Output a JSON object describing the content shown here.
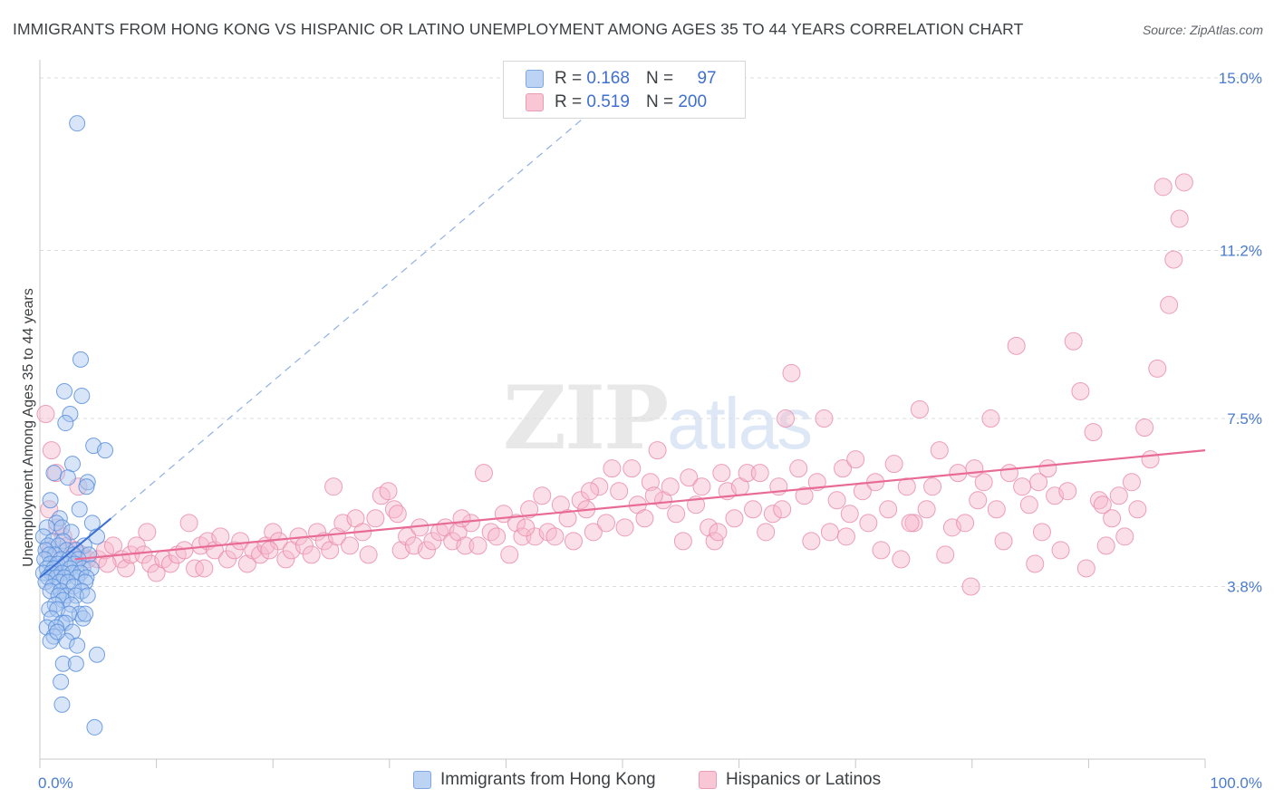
{
  "title": "IMMIGRANTS FROM HONG KONG VS HISPANIC OR LATINO UNEMPLOYMENT AMONG AGES 35 TO 44 YEARS CORRELATION CHART",
  "source": "Source: ZipAtlas.com",
  "watermark": {
    "zip": "ZIP",
    "atlas": "atlas"
  },
  "colors": {
    "blue_fill": "#a9c6ef",
    "blue_stroke": "#5b8fdc",
    "blue_line": "#3a6fd4",
    "pink_fill": "#f7b8cc",
    "pink_stroke": "#e88aa8",
    "pink_line": "#e86b96",
    "tick_label": "#4a7bd0",
    "grid": "#dadce0"
  },
  "legend_top": {
    "rows": [
      {
        "r_label": "R =",
        "r_value": "0.168",
        "n_label": "N =",
        "n_value": "97"
      },
      {
        "r_label": "R =",
        "r_value": "0.519",
        "n_label": "N =",
        "n_value": "200"
      }
    ]
  },
  "legend_bottom": {
    "items": [
      {
        "label": "Immigrants from Hong Kong"
      },
      {
        "label": "Hispanics or Latinos"
      }
    ]
  },
  "chart_data": {
    "type": "scatter",
    "title": "IMMIGRANTS FROM HONG KONG VS HISPANIC OR LATINO UNEMPLOYMENT AMONG AGES 35 TO 44 YEARS CORRELATION CHART",
    "xlabel": "",
    "ylabel": "Unemployment Among Ages 35 to 44 years",
    "x_range": [
      0,
      100
    ],
    "y_range": [
      0,
      15.4
    ],
    "x_tick_labels": [
      "0.0%",
      "100.0%"
    ],
    "y_ticks": [
      {
        "value": 3.8,
        "label": "3.8%"
      },
      {
        "value": 7.5,
        "label": "7.5%"
      },
      {
        "value": 11.2,
        "label": "11.2%"
      },
      {
        "value": 15.0,
        "label": "15.0%"
      }
    ],
    "grid": true,
    "legend_placement": "top-center",
    "series": [
      {
        "name": "Immigrants from Hong Kong",
        "color": "#a9c6ef",
        "R": 0.168,
        "N": 97,
        "trend": {
          "x": [
            0,
            6.1
          ],
          "y": [
            4.0,
            5.3
          ]
        },
        "trend_extension": {
          "x": [
            6.1,
            47.5
          ],
          "y": [
            5.3,
            14.3
          ]
        },
        "points": [
          [
            3.2,
            14.0
          ],
          [
            3.5,
            8.8
          ],
          [
            2.1,
            8.1
          ],
          [
            3.6,
            8.0
          ],
          [
            2.6,
            7.6
          ],
          [
            2.2,
            7.4
          ],
          [
            4.6,
            6.9
          ],
          [
            5.6,
            6.8
          ],
          [
            2.8,
            6.5
          ],
          [
            1.2,
            6.3
          ],
          [
            2.4,
            6.2
          ],
          [
            4.1,
            6.1
          ],
          [
            4.0,
            6.0
          ],
          [
            0.9,
            5.7
          ],
          [
            3.4,
            5.5
          ],
          [
            1.7,
            5.3
          ],
          [
            1.4,
            5.2
          ],
          [
            0.6,
            5.1
          ],
          [
            1.9,
            5.1
          ],
          [
            2.7,
            5.0
          ],
          [
            4.5,
            5.2
          ],
          [
            0.3,
            4.9
          ],
          [
            4.9,
            4.9
          ],
          [
            1.1,
            4.8
          ],
          [
            2.0,
            4.8
          ],
          [
            0.7,
            4.7
          ],
          [
            3.8,
            4.7
          ],
          [
            1.6,
            4.7
          ],
          [
            0.5,
            4.6
          ],
          [
            2.3,
            4.6
          ],
          [
            3.1,
            4.6
          ],
          [
            1.3,
            4.5
          ],
          [
            0.8,
            4.5
          ],
          [
            2.9,
            4.5
          ],
          [
            4.2,
            4.5
          ],
          [
            0.4,
            4.4
          ],
          [
            1.8,
            4.4
          ],
          [
            2.5,
            4.4
          ],
          [
            3.3,
            4.4
          ],
          [
            0.9,
            4.3
          ],
          [
            1.5,
            4.3
          ],
          [
            2.2,
            4.3
          ],
          [
            3.0,
            4.3
          ],
          [
            3.7,
            4.2
          ],
          [
            0.6,
            4.2
          ],
          [
            1.2,
            4.2
          ],
          [
            2.6,
            4.2
          ],
          [
            4.4,
            4.2
          ],
          [
            0.3,
            4.1
          ],
          [
            1.0,
            4.1
          ],
          [
            1.9,
            4.1
          ],
          [
            2.8,
            4.1
          ],
          [
            3.5,
            4.1
          ],
          [
            0.7,
            4.0
          ],
          [
            1.4,
            4.0
          ],
          [
            2.1,
            4.0
          ],
          [
            3.2,
            4.0
          ],
          [
            4.0,
            4.0
          ],
          [
            0.5,
            3.9
          ],
          [
            1.7,
            3.9
          ],
          [
            2.4,
            3.9
          ],
          [
            3.9,
            3.9
          ],
          [
            1.1,
            3.8
          ],
          [
            2.9,
            3.8
          ],
          [
            0.9,
            3.7
          ],
          [
            1.8,
            3.7
          ],
          [
            3.6,
            3.7
          ],
          [
            2.3,
            3.6
          ],
          [
            1.6,
            3.6
          ],
          [
            3.1,
            3.6
          ],
          [
            4.1,
            3.6
          ],
          [
            2.0,
            3.5
          ],
          [
            1.3,
            3.4
          ],
          [
            2.7,
            3.4
          ],
          [
            0.8,
            3.3
          ],
          [
            1.5,
            3.3
          ],
          [
            3.4,
            3.2
          ],
          [
            2.5,
            3.2
          ],
          [
            1.0,
            3.1
          ],
          [
            3.7,
            3.1
          ],
          [
            3.9,
            3.2
          ],
          [
            1.9,
            3.0
          ],
          [
            2.2,
            3.0
          ],
          [
            0.6,
            2.9
          ],
          [
            1.4,
            2.9
          ],
          [
            2.8,
            2.8
          ],
          [
            1.2,
            2.7
          ],
          [
            0.9,
            2.6
          ],
          [
            2.3,
            2.6
          ],
          [
            3.2,
            2.5
          ],
          [
            4.9,
            2.3
          ],
          [
            2.0,
            2.1
          ],
          [
            3.1,
            2.1
          ],
          [
            1.8,
            1.7
          ],
          [
            1.9,
            1.2
          ],
          [
            4.7,
            0.7
          ],
          [
            1.5,
            2.8
          ]
        ]
      },
      {
        "name": "Hispanics or Latinos",
        "color": "#f7b8cc",
        "R": 0.519,
        "N": 200,
        "trend": {
          "x": [
            3.0,
            100.0
          ],
          "y": [
            4.4,
            6.8
          ]
        },
        "points": [
          [
            0.5,
            7.6
          ],
          [
            1.0,
            6.8
          ],
          [
            1.4,
            6.3
          ],
          [
            0.8,
            5.5
          ],
          [
            1.5,
            5.1
          ],
          [
            2.0,
            4.9
          ],
          [
            2.4,
            4.7
          ],
          [
            3.0,
            4.6
          ],
          [
            3.6,
            4.5
          ],
          [
            4.1,
            4.4
          ],
          [
            5.0,
            4.4
          ],
          [
            5.6,
            4.6
          ],
          [
            6.3,
            4.7
          ],
          [
            7.0,
            4.4
          ],
          [
            7.4,
            4.2
          ],
          [
            7.8,
            4.5
          ],
          [
            8.3,
            4.7
          ],
          [
            8.9,
            4.5
          ],
          [
            9.5,
            4.3
          ],
          [
            10.0,
            4.1
          ],
          [
            10.6,
            4.4
          ],
          [
            11.2,
            4.3
          ],
          [
            11.8,
            4.5
          ],
          [
            12.4,
            4.6
          ],
          [
            12.8,
            5.2
          ],
          [
            13.3,
            4.2
          ],
          [
            13.8,
            4.7
          ],
          [
            14.4,
            4.8
          ],
          [
            15.0,
            4.6
          ],
          [
            15.5,
            4.9
          ],
          [
            16.1,
            4.4
          ],
          [
            16.7,
            4.6
          ],
          [
            17.2,
            4.8
          ],
          [
            17.8,
            4.3
          ],
          [
            18.3,
            4.6
          ],
          [
            18.9,
            4.5
          ],
          [
            19.4,
            4.7
          ],
          [
            20.0,
            5.0
          ],
          [
            20.5,
            4.8
          ],
          [
            21.1,
            4.4
          ],
          [
            21.6,
            4.6
          ],
          [
            22.2,
            4.9
          ],
          [
            22.7,
            4.7
          ],
          [
            23.3,
            4.5
          ],
          [
            23.8,
            5.0
          ],
          [
            24.4,
            4.8
          ],
          [
            24.9,
            4.6
          ],
          [
            25.5,
            4.9
          ],
          [
            26.0,
            5.2
          ],
          [
            26.6,
            4.7
          ],
          [
            27.1,
            5.3
          ],
          [
            27.7,
            5.0
          ],
          [
            28.2,
            4.5
          ],
          [
            28.8,
            5.3
          ],
          [
            29.3,
            5.8
          ],
          [
            29.9,
            5.9
          ],
          [
            30.4,
            5.5
          ],
          [
            31.0,
            4.6
          ],
          [
            31.5,
            4.9
          ],
          [
            32.1,
            4.7
          ],
          [
            32.6,
            5.1
          ],
          [
            33.2,
            4.6
          ],
          [
            33.7,
            4.8
          ],
          [
            34.3,
            5.0
          ],
          [
            34.8,
            5.1
          ],
          [
            35.4,
            4.8
          ],
          [
            35.9,
            5.0
          ],
          [
            36.5,
            4.7
          ],
          [
            37.0,
            5.2
          ],
          [
            37.6,
            4.7
          ],
          [
            38.1,
            6.3
          ],
          [
            38.7,
            5.0
          ],
          [
            39.2,
            4.9
          ],
          [
            39.8,
            5.4
          ],
          [
            40.3,
            4.5
          ],
          [
            40.9,
            5.2
          ],
          [
            41.4,
            4.9
          ],
          [
            42.0,
            5.5
          ],
          [
            42.5,
            4.9
          ],
          [
            43.1,
            5.8
          ],
          [
            43.6,
            5.0
          ],
          [
            44.2,
            4.9
          ],
          [
            44.7,
            5.6
          ],
          [
            45.3,
            5.3
          ],
          [
            45.8,
            4.8
          ],
          [
            46.4,
            5.7
          ],
          [
            46.9,
            5.5
          ],
          [
            47.5,
            5.0
          ],
          [
            48.0,
            6.0
          ],
          [
            48.6,
            5.2
          ],
          [
            49.1,
            6.4
          ],
          [
            49.7,
            5.9
          ],
          [
            50.2,
            5.1
          ],
          [
            50.8,
            6.4
          ],
          [
            51.3,
            5.6
          ],
          [
            51.9,
            5.3
          ],
          [
            52.4,
            6.1
          ],
          [
            53.0,
            6.8
          ],
          [
            53.5,
            5.7
          ],
          [
            54.1,
            6.0
          ],
          [
            54.6,
            5.4
          ],
          [
            55.2,
            4.8
          ],
          [
            55.7,
            6.2
          ],
          [
            56.3,
            5.6
          ],
          [
            56.8,
            6.0
          ],
          [
            57.4,
            5.1
          ],
          [
            57.9,
            4.8
          ],
          [
            58.5,
            6.3
          ],
          [
            59.0,
            5.9
          ],
          [
            59.6,
            5.3
          ],
          [
            60.1,
            6.0
          ],
          [
            60.7,
            6.3
          ],
          [
            61.2,
            5.5
          ],
          [
            61.8,
            6.3
          ],
          [
            62.3,
            5.0
          ],
          [
            62.9,
            5.4
          ],
          [
            63.4,
            6.0
          ],
          [
            64.0,
            7.5
          ],
          [
            64.5,
            8.5
          ],
          [
            65.1,
            6.4
          ],
          [
            65.6,
            5.8
          ],
          [
            66.2,
            4.8
          ],
          [
            66.7,
            6.1
          ],
          [
            67.3,
            7.5
          ],
          [
            67.8,
            5.0
          ],
          [
            68.4,
            5.7
          ],
          [
            68.9,
            6.4
          ],
          [
            69.5,
            5.4
          ],
          [
            70.0,
            6.6
          ],
          [
            70.6,
            5.9
          ],
          [
            71.1,
            5.2
          ],
          [
            71.7,
            6.1
          ],
          [
            72.2,
            4.6
          ],
          [
            72.8,
            5.5
          ],
          [
            73.3,
            6.5
          ],
          [
            73.9,
            4.4
          ],
          [
            74.4,
            6.0
          ],
          [
            75.0,
            5.2
          ],
          [
            75.5,
            7.7
          ],
          [
            76.1,
            5.5
          ],
          [
            76.6,
            6.0
          ],
          [
            77.2,
            6.8
          ],
          [
            77.7,
            4.5
          ],
          [
            78.3,
            5.1
          ],
          [
            78.8,
            6.3
          ],
          [
            79.4,
            5.2
          ],
          [
            79.9,
            3.8
          ],
          [
            80.5,
            5.7
          ],
          [
            81.0,
            6.1
          ],
          [
            81.6,
            7.5
          ],
          [
            82.1,
            5.5
          ],
          [
            82.7,
            4.8
          ],
          [
            83.2,
            6.3
          ],
          [
            83.8,
            9.1
          ],
          [
            84.3,
            6.0
          ],
          [
            84.9,
            5.6
          ],
          [
            85.4,
            4.3
          ],
          [
            86.0,
            5.0
          ],
          [
            86.5,
            6.4
          ],
          [
            87.1,
            5.8
          ],
          [
            87.6,
            4.6
          ],
          [
            88.2,
            5.9
          ],
          [
            88.7,
            9.2
          ],
          [
            89.3,
            8.1
          ],
          [
            89.8,
            4.2
          ],
          [
            90.4,
            7.2
          ],
          [
            90.9,
            5.7
          ],
          [
            91.5,
            4.7
          ],
          [
            92.0,
            5.3
          ],
          [
            92.6,
            5.8
          ],
          [
            93.1,
            4.9
          ],
          [
            93.7,
            6.1
          ],
          [
            94.2,
            5.5
          ],
          [
            94.8,
            7.3
          ],
          [
            95.3,
            6.6
          ],
          [
            95.9,
            8.6
          ],
          [
            96.4,
            12.6
          ],
          [
            96.9,
            10.0
          ],
          [
            97.3,
            11.0
          ],
          [
            97.8,
            11.9
          ],
          [
            98.2,
            12.7
          ],
          [
            0.9,
            4.6
          ],
          [
            3.3,
            6.0
          ],
          [
            5.8,
            4.3
          ],
          [
            9.2,
            5.0
          ],
          [
            14.1,
            4.2
          ],
          [
            19.7,
            4.6
          ],
          [
            25.2,
            6.0
          ],
          [
            30.7,
            5.4
          ],
          [
            36.2,
            5.3
          ],
          [
            41.7,
            5.1
          ],
          [
            47.2,
            5.9
          ],
          [
            52.7,
            5.8
          ],
          [
            58.2,
            5.0
          ],
          [
            63.7,
            5.5
          ],
          [
            69.2,
            4.9
          ],
          [
            74.7,
            5.2
          ],
          [
            80.2,
            6.4
          ],
          [
            85.7,
            6.1
          ],
          [
            91.2,
            5.6
          ]
        ]
      }
    ]
  }
}
